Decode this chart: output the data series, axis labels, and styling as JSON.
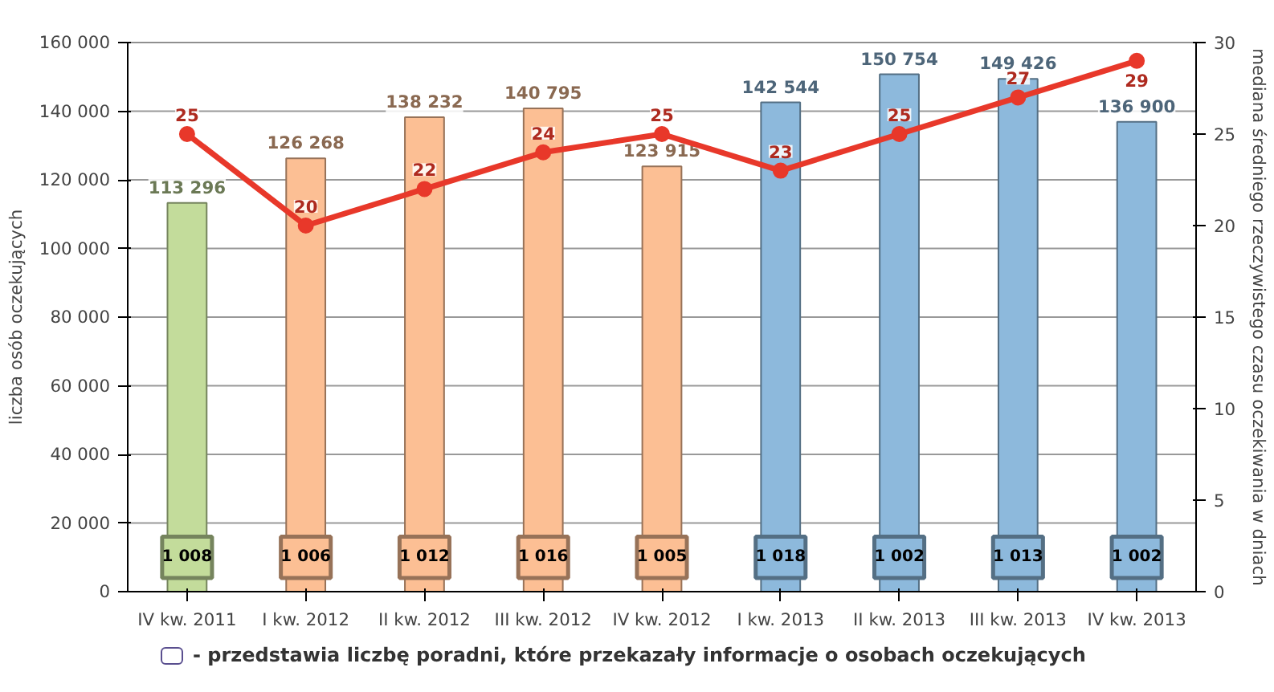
{
  "chart_data": {
    "type": "bar",
    "categories": [
      "IV kw. 2011",
      "I kw. 2012",
      "II kw. 2012",
      "III kw. 2012",
      "IV kw. 2012",
      "I kw. 2013",
      "II kw. 2013",
      "III kw. 2013",
      "IV kw. 2013"
    ],
    "ylabel": "liczba osób oczekujących",
    "y2label": "mediana średniego rzeczywistego czasu oczekiwania w dniach",
    "ylim": [
      0,
      160000
    ],
    "yticks": [
      {
        "value": 0,
        "label": "0"
      },
      {
        "value": 20000,
        "label": "20 000"
      },
      {
        "value": 40000,
        "label": "40 000"
      },
      {
        "value": 60000,
        "label": "60 000"
      },
      {
        "value": 80000,
        "label": "80 000"
      },
      {
        "value": 100000,
        "label": "100 000"
      },
      {
        "value": 120000,
        "label": "120 000"
      },
      {
        "value": 140000,
        "label": "140 000"
      },
      {
        "value": 160000,
        "label": "160 000"
      }
    ],
    "y2lim": [
      0,
      30
    ],
    "y2ticks": [
      0,
      5,
      10,
      15,
      20,
      25,
      30
    ],
    "grid": "y",
    "series": [
      {
        "type": "bar",
        "values": [
          113296,
          126268,
          138232,
          140795,
          123915,
          142544,
          150754,
          149426,
          136900
        ],
        "colors": [
          "#c3dc9b",
          "#fcbf94",
          "#fcbf94",
          "#fcbf94",
          "#fcbf94",
          "#8db9dc",
          "#8db9dc",
          "#8db9dc",
          "#8db9dc"
        ],
        "value_labels": [
          "113 296",
          "126 268",
          "138 232",
          "140 795",
          "123 915",
          "142 544",
          "150 754",
          "149 426",
          "136 900"
        ]
      },
      {
        "type": "line",
        "axis": "y2",
        "color": "#e8382a",
        "values": [
          25,
          20,
          22,
          24,
          25,
          23,
          25,
          27,
          29
        ],
        "marker": "circle",
        "data_labels": true
      }
    ],
    "annotations": [
      {
        "text": "1 008",
        "x": "IV kw. 2011"
      },
      {
        "text": "1 006",
        "x": "I kw. 2012"
      },
      {
        "text": "1 012",
        "x": "II kw. 2012"
      },
      {
        "text": "1 016",
        "x": "III kw. 2012"
      },
      {
        "text": "1 005",
        "x": "IV kw. 2012"
      },
      {
        "text": "1 018",
        "x": "I kw. 2013"
      },
      {
        "text": "1 002",
        "x": "II kw. 2013"
      },
      {
        "text": "1 013",
        "x": "III kw. 2013"
      },
      {
        "text": "1 002",
        "x": "IV kw. 2013"
      },
      "- przedstawia liczbę poradni, które przekazały informacje  o osobach oczekujących"
    ]
  }
}
